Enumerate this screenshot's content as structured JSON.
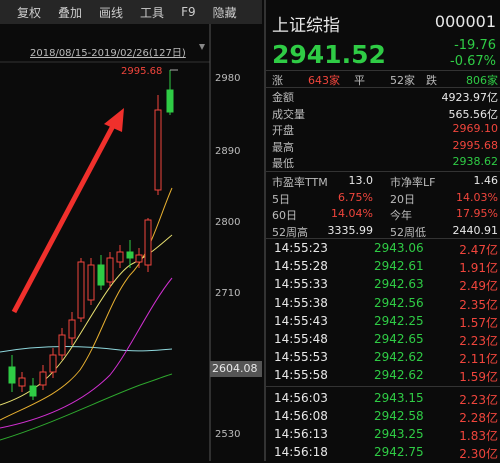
{
  "toolbar": {
    "buttons": [
      "复权",
      "叠加",
      "画线",
      "工具",
      "F9",
      "隐藏"
    ]
  },
  "chart": {
    "range": "2018/08/15-2019/02/26(127日)",
    "high_label": "2995.68",
    "current_label": "2604.08",
    "axis_labels": [
      "2980",
      "2890",
      "2800",
      "2710",
      "2530"
    ]
  },
  "quote": {
    "name": "上证综指",
    "code": "000001",
    "price": "2941.52",
    "change": "-19.76",
    "change_pct": "-0.67%"
  },
  "breadth": {
    "up_label": "涨",
    "up": "643家",
    "flat_label": "平",
    "flat": "52家",
    "down_label": "跌",
    "down": "806家"
  },
  "stats": [
    {
      "label": "金额",
      "value": "4923.97亿"
    },
    {
      "label": "成交量",
      "value": "565.56亿"
    },
    {
      "label": "开盘",
      "value": "2969.10"
    },
    {
      "label": "最高",
      "value": "2995.68"
    },
    {
      "label": "最低",
      "value": "2938.62"
    }
  ],
  "ratios": [
    {
      "l1": "市盈率TTM",
      "v1": "13.0",
      "l2": "市净率LF",
      "v2": "1.46"
    },
    {
      "l1": "5日",
      "v1": "6.75%",
      "l2": "20日",
      "v2": "14.03%"
    },
    {
      "l1": "60日",
      "v1": "14.04%",
      "l2": "今年",
      "v2": "17.95%"
    },
    {
      "l1": "52周高",
      "v1": "3335.99",
      "l2": "52周低",
      "v2": "2440.91"
    }
  ],
  "ticks": [
    [
      "14:55:23",
      "2943.06",
      "2.47亿"
    ],
    [
      "14:55:28",
      "2942.61",
      "1.91亿"
    ],
    [
      "14:55:33",
      "2942.63",
      "2.49亿"
    ],
    [
      "14:55:38",
      "2942.56",
      "2.35亿"
    ],
    [
      "14:55:43",
      "2942.25",
      "1.57亿"
    ],
    [
      "14:55:48",
      "2942.65",
      "2.23亿"
    ],
    [
      "14:55:53",
      "2942.62",
      "2.11亿"
    ],
    [
      "14:55:58",
      "2942.62",
      "1.59亿"
    ],
    [
      "14:56:03",
      "2943.15",
      "2.23亿"
    ],
    [
      "14:56:08",
      "2942.58",
      "2.28亿"
    ],
    [
      "14:56:13",
      "2943.25",
      "1.83亿"
    ],
    [
      "14:56:18",
      "2942.75",
      "2.30亿"
    ]
  ]
}
